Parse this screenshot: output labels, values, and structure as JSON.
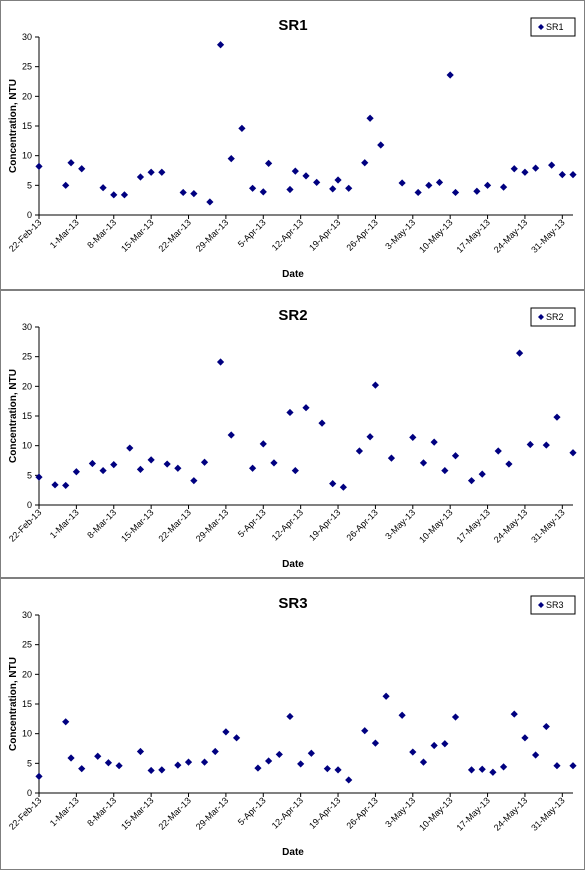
{
  "chart_data": [
    {
      "type": "scatter",
      "title": "SR1",
      "xlabel": "Date",
      "ylabel": "Concentration, NTU",
      "ylim": [
        0,
        30
      ],
      "yticks": [
        0,
        5,
        10,
        15,
        20,
        25,
        30
      ],
      "xlim": [
        "2013-02-22",
        "2013-06-02"
      ],
      "xtick_labels": [
        "22-Feb-13",
        "1-Mar-13",
        "8-Mar-13",
        "15-Mar-13",
        "22-Mar-13",
        "29-Mar-13",
        "5-Apr-13",
        "12-Apr-13",
        "19-Apr-13",
        "26-Apr-13",
        "3-May-13",
        "10-May-13",
        "17-May-13",
        "24-May-13",
        "31-May-13"
      ],
      "legend_position": "top-right",
      "grid": false,
      "series": [
        {
          "name": "SR1",
          "color": "#000080",
          "marker": "diamond",
          "x": [
            "2013-02-22",
            "2013-02-27",
            "2013-02-28",
            "2013-03-02",
            "2013-03-06",
            "2013-03-08",
            "2013-03-10",
            "2013-03-13",
            "2013-03-15",
            "2013-03-17",
            "2013-03-21",
            "2013-03-23",
            "2013-03-26",
            "2013-03-28",
            "2013-03-30",
            "2013-04-01",
            "2013-04-03",
            "2013-04-05",
            "2013-04-06",
            "2013-04-10",
            "2013-04-11",
            "2013-04-13",
            "2013-04-15",
            "2013-04-18",
            "2013-04-19",
            "2013-04-21",
            "2013-04-24",
            "2013-04-25",
            "2013-04-27",
            "2013-05-01",
            "2013-05-04",
            "2013-05-06",
            "2013-05-08",
            "2013-05-10",
            "2013-05-11",
            "2013-05-15",
            "2013-05-17",
            "2013-05-20",
            "2013-05-22",
            "2013-05-24",
            "2013-05-26",
            "2013-05-29",
            "2013-05-31",
            "2013-06-02"
          ],
          "y": [
            8.2,
            5.0,
            8.8,
            7.8,
            4.6,
            3.4,
            3.4,
            6.4,
            7.2,
            7.2,
            3.8,
            3.6,
            2.2,
            28.7,
            9.5,
            14.6,
            4.5,
            3.9,
            8.7,
            4.3,
            7.4,
            6.6,
            5.5,
            4.4,
            5.9,
            4.5,
            8.8,
            16.3,
            11.8,
            5.4,
            3.8,
            5.0,
            5.5,
            23.6,
            3.8,
            4.0,
            5.0,
            4.7,
            7.8,
            7.2,
            7.9,
            8.4,
            6.8,
            6.8
          ]
        }
      ]
    },
    {
      "type": "scatter",
      "title": "SR2",
      "xlabel": "Date",
      "ylabel": "Concentration, NTU",
      "ylim": [
        0,
        30
      ],
      "yticks": [
        0,
        5,
        10,
        15,
        20,
        25,
        30
      ],
      "xlim": [
        "2013-02-22",
        "2013-06-02"
      ],
      "xtick_labels": [
        "22-Feb-13",
        "1-Mar-13",
        "8-Mar-13",
        "15-Mar-13",
        "22-Mar-13",
        "29-Mar-13",
        "5-Apr-13",
        "12-Apr-13",
        "19-Apr-13",
        "26-Apr-13",
        "3-May-13",
        "10-May-13",
        "17-May-13",
        "24-May-13",
        "31-May-13"
      ],
      "legend_position": "top-right",
      "grid": false,
      "series": [
        {
          "name": "SR2",
          "color": "#000080",
          "marker": "diamond",
          "x": [
            "2013-02-22",
            "2013-02-25",
            "2013-02-27",
            "2013-03-01",
            "2013-03-04",
            "2013-03-06",
            "2013-03-08",
            "2013-03-11",
            "2013-03-13",
            "2013-03-15",
            "2013-03-18",
            "2013-03-20",
            "2013-03-23",
            "2013-03-25",
            "2013-03-28",
            "2013-03-30",
            "2013-04-03",
            "2013-04-05",
            "2013-04-07",
            "2013-04-10",
            "2013-04-11",
            "2013-04-13",
            "2013-04-16",
            "2013-04-18",
            "2013-04-20",
            "2013-04-23",
            "2013-04-25",
            "2013-04-26",
            "2013-04-29",
            "2013-05-03",
            "2013-05-05",
            "2013-05-07",
            "2013-05-09",
            "2013-05-11",
            "2013-05-14",
            "2013-05-16",
            "2013-05-19",
            "2013-05-21",
            "2013-05-23",
            "2013-05-25",
            "2013-05-28",
            "2013-05-30",
            "2013-06-02"
          ],
          "y": [
            4.7,
            3.4,
            3.3,
            5.6,
            7.0,
            5.8,
            6.8,
            9.6,
            6.0,
            7.6,
            6.9,
            6.2,
            4.1,
            7.2,
            24.1,
            11.8,
            6.2,
            10.3,
            7.1,
            15.6,
            5.8,
            16.4,
            13.8,
            3.6,
            3.0,
            9.1,
            11.5,
            20.2,
            7.9,
            11.4,
            7.1,
            10.6,
            5.8,
            8.3,
            4.1,
            5.2,
            9.1,
            6.9,
            25.6,
            10.2,
            10.1,
            14.8,
            8.8
          ]
        }
      ]
    },
    {
      "type": "scatter",
      "title": "SR3",
      "xlabel": "Date",
      "ylabel": "Concentration, NTU",
      "ylim": [
        0,
        30
      ],
      "yticks": [
        0,
        5,
        10,
        15,
        20,
        25,
        30
      ],
      "xlim": [
        "2013-02-22",
        "2013-06-02"
      ],
      "xtick_labels": [
        "22-Feb-13",
        "1-Mar-13",
        "8-Mar-13",
        "15-Mar-13",
        "22-Mar-13",
        "29-Mar-13",
        "5-Apr-13",
        "12-Apr-13",
        "19-Apr-13",
        "26-Apr-13",
        "3-May-13",
        "10-May-13",
        "17-May-13",
        "24-May-13",
        "31-May-13"
      ],
      "legend_position": "top-right",
      "grid": false,
      "series": [
        {
          "name": "SR3",
          "color": "#000080",
          "marker": "diamond",
          "x": [
            "2013-02-22",
            "2013-02-27",
            "2013-02-28",
            "2013-03-02",
            "2013-03-05",
            "2013-03-07",
            "2013-03-09",
            "2013-03-13",
            "2013-03-15",
            "2013-03-17",
            "2013-03-20",
            "2013-03-22",
            "2013-03-25",
            "2013-03-27",
            "2013-03-29",
            "2013-03-31",
            "2013-04-04",
            "2013-04-06",
            "2013-04-08",
            "2013-04-10",
            "2013-04-12",
            "2013-04-14",
            "2013-04-17",
            "2013-04-19",
            "2013-04-21",
            "2013-04-24",
            "2013-04-26",
            "2013-04-28",
            "2013-05-01",
            "2013-05-03",
            "2013-05-05",
            "2013-05-07",
            "2013-05-09",
            "2013-05-11",
            "2013-05-14",
            "2013-05-16",
            "2013-05-18",
            "2013-05-20",
            "2013-05-22",
            "2013-05-24",
            "2013-05-26",
            "2013-05-28",
            "2013-05-30",
            "2013-06-02"
          ],
          "y": [
            2.8,
            12.0,
            5.9,
            4.1,
            6.2,
            5.1,
            4.6,
            7.0,
            3.8,
            3.9,
            4.7,
            5.2,
            5.2,
            7.0,
            10.3,
            9.3,
            4.2,
            5.4,
            6.5,
            12.9,
            4.9,
            6.7,
            4.1,
            3.9,
            2.2,
            10.5,
            8.4,
            16.3,
            13.1,
            6.9,
            5.2,
            8.0,
            8.3,
            12.8,
            3.9,
            4.0,
            3.5,
            4.4,
            13.3,
            9.3,
            6.4,
            11.2,
            4.6,
            4.6
          ]
        }
      ]
    }
  ]
}
